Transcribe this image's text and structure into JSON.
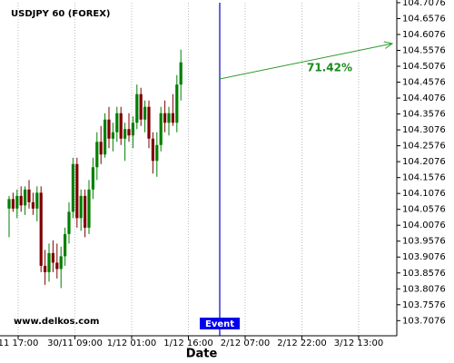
{
  "chart_data": {
    "type": "candlestick",
    "title": "USDJPY 60 (FOREX)",
    "x_label": "Date",
    "watermark": "www.delkos.com",
    "event_label": "Event",
    "annotation": "71.42%",
    "x_tick_labels": [
      "11 17:00",
      "30/11 09:00",
      "1/12 01:00",
      "1/12 16:00",
      "2/12 07:00",
      "2/12 22:00",
      "3/12 13:00"
    ],
    "ylim": [
      103.66,
      104.716
    ],
    "yticks": [
      103.7076,
      103.7576,
      103.8076,
      103.8576,
      103.9076,
      103.9576,
      104.0076,
      104.0576,
      104.1076,
      104.1576,
      104.2076,
      104.2576,
      104.3076,
      104.3576,
      104.4076,
      104.4576,
      104.5076,
      104.5576,
      104.6076,
      104.6576,
      104.7076
    ],
    "up_color": "#008000",
    "down_color": "#800000",
    "grid": true,
    "open": [
      104.06,
      104.09,
      104.06,
      104.1,
      104.07,
      104.12,
      104.08,
      104.06,
      104.11,
      103.88,
      103.86,
      103.92,
      103.89,
      103.87,
      103.91,
      103.98,
      104.05,
      104.2,
      104.03,
      104.1,
      104.0,
      104.12,
      104.19,
      104.27,
      104.23,
      104.34,
      104.28,
      104.3,
      104.36,
      104.28,
      104.31,
      104.29,
      104.33,
      104.42,
      104.34,
      104.38,
      104.28,
      104.21,
      104.26,
      104.36,
      104.33,
      104.36,
      104.33,
      104.45
    ],
    "high": [
      104.1,
      104.11,
      104.12,
      104.13,
      104.13,
      104.15,
      104.11,
      104.13,
      104.13,
      103.93,
      103.95,
      103.96,
      103.95,
      103.94,
      104.0,
      104.08,
      104.22,
      104.22,
      104.12,
      104.12,
      104.15,
      104.22,
      104.3,
      104.32,
      104.36,
      104.38,
      104.33,
      104.38,
      104.38,
      104.33,
      104.36,
      104.35,
      104.45,
      104.44,
      104.4,
      104.4,
      104.3,
      104.3,
      104.38,
      104.4,
      104.38,
      104.42,
      104.48,
      104.56
    ],
    "low": [
      103.97,
      104.05,
      104.03,
      104.05,
      104.04,
      104.06,
      104.04,
      104.02,
      103.86,
      103.82,
      103.83,
      103.86,
      103.84,
      103.81,
      103.88,
      103.95,
      104.03,
      104.0,
      103.99,
      103.97,
      103.98,
      104.09,
      104.15,
      104.2,
      104.22,
      104.25,
      104.24,
      104.27,
      104.26,
      104.21,
      104.27,
      104.25,
      104.31,
      104.32,
      104.3,
      104.25,
      104.17,
      104.16,
      104.24,
      104.3,
      104.29,
      104.32,
      104.3,
      104.4
    ],
    "close": [
      104.09,
      104.06,
      104.1,
      104.07,
      104.12,
      104.08,
      104.06,
      104.11,
      103.88,
      103.86,
      103.92,
      103.89,
      103.87,
      103.91,
      103.98,
      104.05,
      104.2,
      104.03,
      104.1,
      104.0,
      104.12,
      104.19,
      104.27,
      104.23,
      104.34,
      104.28,
      104.3,
      104.36,
      104.28,
      104.31,
      104.29,
      104.33,
      104.42,
      104.34,
      104.38,
      104.28,
      104.21,
      104.26,
      104.36,
      104.33,
      104.36,
      104.33,
      104.45,
      104.52
    ]
  }
}
